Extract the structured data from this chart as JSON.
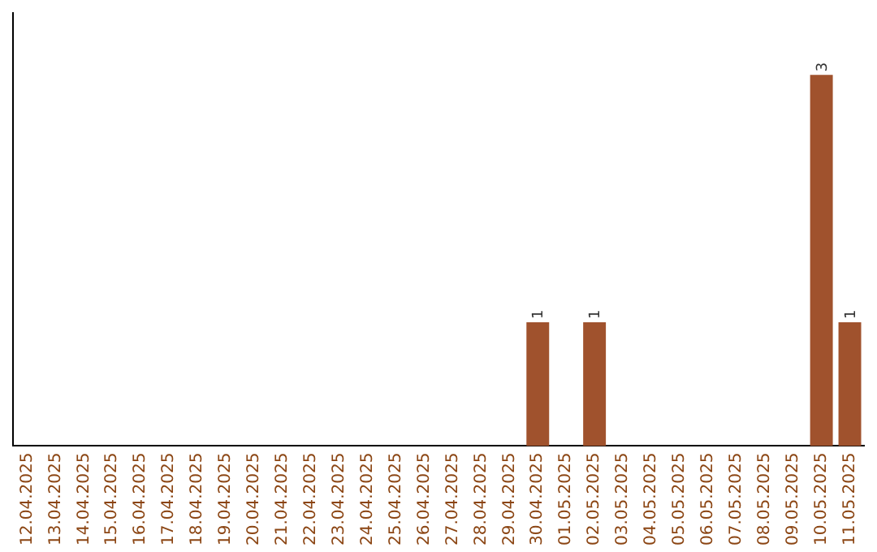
{
  "chart_data": {
    "type": "bar",
    "categories": [
      "12.04.2025",
      "13.04.2025",
      "14.04.2025",
      "15.04.2025",
      "16.04.2025",
      "17.04.2025",
      "18.04.2025",
      "19.04.2025",
      "20.04.2025",
      "21.04.2025",
      "22.04.2025",
      "23.04.2025",
      "24.04.2025",
      "25.04.2025",
      "26.04.2025",
      "27.04.2025",
      "28.04.2025",
      "29.04.2025",
      "30.04.2025",
      "01.05.2025",
      "02.05.2025",
      "03.05.2025",
      "04.05.2025",
      "05.05.2025",
      "06.05.2025",
      "07.05.2025",
      "08.05.2025",
      "09.05.2025",
      "10.05.2025",
      "11.05.2025"
    ],
    "values": [
      null,
      null,
      null,
      null,
      null,
      null,
      null,
      null,
      null,
      null,
      null,
      null,
      null,
      null,
      null,
      null,
      null,
      null,
      1,
      null,
      1,
      null,
      null,
      null,
      null,
      null,
      null,
      null,
      3,
      1
    ],
    "data_labels": true,
    "color": "#a0522d",
    "grid": false,
    "legend": false
  }
}
